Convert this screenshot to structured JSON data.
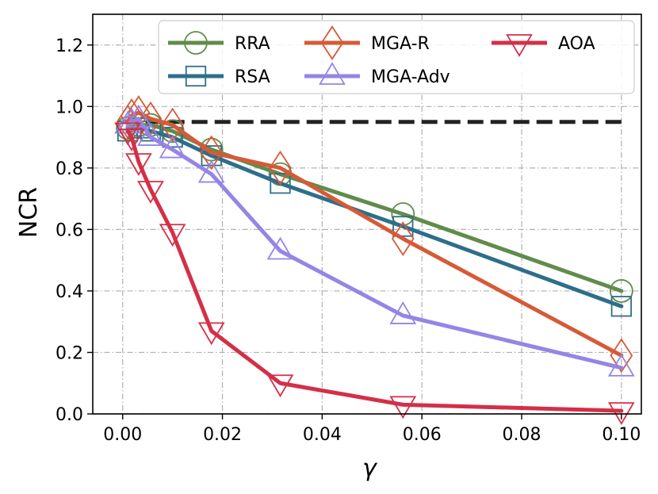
{
  "chart_data": {
    "type": "line",
    "title": "",
    "xlabel": "γ",
    "ylabel": "NCR",
    "xlim": [
      -0.006,
      0.104
    ],
    "ylim": [
      0.0,
      1.3
    ],
    "xticks": [
      0.0,
      0.02,
      0.04,
      0.06,
      0.08,
      0.1
    ],
    "xtick_labels": [
      "0.00",
      "0.02",
      "0.04",
      "0.06",
      "0.08",
      "0.10"
    ],
    "yticks": [
      0.0,
      0.2,
      0.4,
      0.6,
      0.8,
      1.0,
      1.2
    ],
    "ytick_labels": [
      "0.0",
      "0.2",
      "0.4",
      "0.6",
      "0.8",
      "1.0",
      "1.2"
    ],
    "grid": true,
    "legend_position": "top-right",
    "reference_line": {
      "y": 0.95,
      "x_range": [
        0.0,
        0.1
      ],
      "color": "#222222",
      "style": "dashed"
    },
    "series": [
      {
        "name": "RRA",
        "color": "#5f8c4b",
        "marker": "circle",
        "x": [
          0.001,
          0.0032,
          0.0056,
          0.01,
          0.0178,
          0.0316,
          0.0562,
          0.1
        ],
        "y": [
          0.93,
          0.94,
          0.94,
          0.92,
          0.86,
          0.78,
          0.65,
          0.4
        ]
      },
      {
        "name": "RSA",
        "color": "#2e6e8a",
        "marker": "square",
        "x": [
          0.001,
          0.0032,
          0.0056,
          0.01,
          0.0178,
          0.0316,
          0.0562,
          0.1
        ],
        "y": [
          0.92,
          0.93,
          0.92,
          0.9,
          0.84,
          0.75,
          0.61,
          0.35
        ]
      },
      {
        "name": "MGA-R",
        "color": "#d65a37",
        "marker": "diamond",
        "x": [
          0.001,
          0.0018,
          0.0032,
          0.0056,
          0.01,
          0.0178,
          0.0316,
          0.0562,
          0.1
        ],
        "y": [
          0.95,
          0.97,
          0.98,
          0.96,
          0.94,
          0.85,
          0.8,
          0.57,
          0.19
        ]
      },
      {
        "name": "MGA-Adv",
        "color": "#9585e6",
        "marker": "triangle-up",
        "x": [
          0.001,
          0.0018,
          0.0032,
          0.0056,
          0.01,
          0.0178,
          0.0316,
          0.0562,
          0.1
        ],
        "y": [
          0.94,
          0.95,
          0.96,
          0.9,
          0.86,
          0.78,
          0.53,
          0.32,
          0.15
        ]
      },
      {
        "name": "AOA",
        "color": "#d42f47",
        "marker": "triangle-down",
        "x": [
          0.001,
          0.0018,
          0.0032,
          0.0056,
          0.01,
          0.0178,
          0.0316,
          0.0562,
          0.1
        ],
        "y": [
          0.92,
          0.9,
          0.82,
          0.73,
          0.59,
          0.27,
          0.1,
          0.03,
          0.01
        ]
      }
    ]
  }
}
